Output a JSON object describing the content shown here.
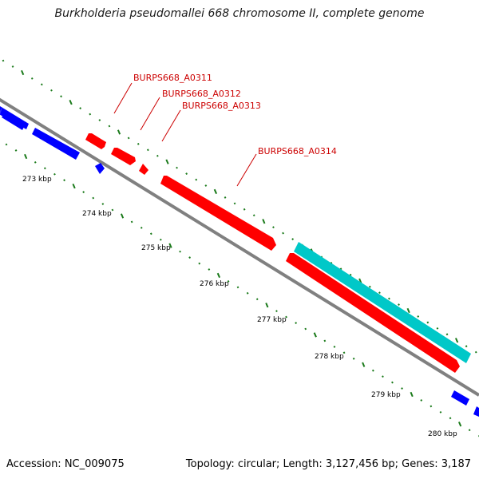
{
  "title": "Burkholderia pseudomallei 668 chromosome II, complete genome",
  "footer": {
    "accession": "Accession: NC_009075",
    "summary": "Topology: circular; Length: 3,127,456 bp; Genes: 3,187"
  },
  "colors": {
    "backbone": "#808080",
    "tick": "#1a7a1a",
    "label": "#cc0000",
    "highlight_gene": "#ff0000",
    "other_gene": "#0000ff",
    "feature_bar": "#00c8c8"
  },
  "tick_labels": [
    "273 kbp",
    "274 kbp",
    "275 kbp",
    "276 kbp",
    "277 kbp",
    "278 kbp",
    "279 kbp",
    "280 kbp"
  ],
  "gene_labels": [
    "BURPS668_A0311",
    "BURPS668_A0312",
    "BURPS668_A0313",
    "BURPS668_A0314"
  ]
}
